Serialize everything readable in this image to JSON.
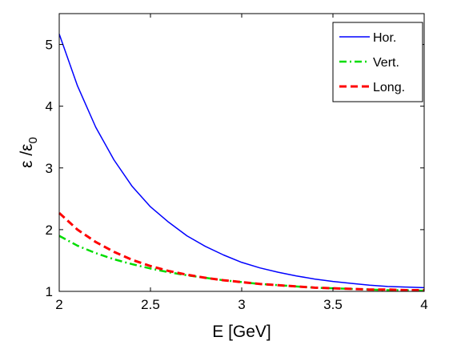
{
  "chart_data": {
    "type": "line",
    "title": "",
    "xlabel": "E [GeV]",
    "ylabel": {
      "main": "ε /ε",
      "sub": "0"
    },
    "xlim": [
      2,
      4
    ],
    "ylim": [
      1,
      5.5
    ],
    "xticks": [
      "2",
      "2.5",
      "3",
      "3.5",
      "4"
    ],
    "yticks": [
      "1",
      "2",
      "3",
      "4",
      "5"
    ],
    "grid": false,
    "legend_position": "top-right",
    "x": [
      2.0,
      2.1,
      2.2,
      2.3,
      2.4,
      2.5,
      2.6,
      2.7,
      2.8,
      2.9,
      3.0,
      3.1,
      3.2,
      3.3,
      3.4,
      3.5,
      3.6,
      3.7,
      3.8,
      3.9,
      4.0
    ],
    "series": [
      {
        "name": "Hor.",
        "color": "#0000ff",
        "style": "solid",
        "values": [
          5.17,
          4.33,
          3.66,
          3.13,
          2.7,
          2.37,
          2.12,
          1.9,
          1.73,
          1.59,
          1.47,
          1.38,
          1.31,
          1.25,
          1.2,
          1.16,
          1.13,
          1.1,
          1.08,
          1.07,
          1.06
        ]
      },
      {
        "name": "Vert.",
        "color": "#00dd00",
        "style": "dashdot",
        "values": [
          1.9,
          1.74,
          1.62,
          1.52,
          1.44,
          1.37,
          1.31,
          1.26,
          1.22,
          1.18,
          1.15,
          1.12,
          1.1,
          1.08,
          1.06,
          1.05,
          1.04,
          1.03,
          1.02,
          1.02,
          1.01
        ]
      },
      {
        "name": "Long.",
        "color": "#ff0000",
        "style": "dashed",
        "values": [
          2.27,
          2.0,
          1.8,
          1.64,
          1.51,
          1.41,
          1.33,
          1.27,
          1.22,
          1.18,
          1.15,
          1.12,
          1.1,
          1.08,
          1.06,
          1.05,
          1.04,
          1.03,
          1.03,
          1.02,
          1.02
        ]
      }
    ]
  }
}
